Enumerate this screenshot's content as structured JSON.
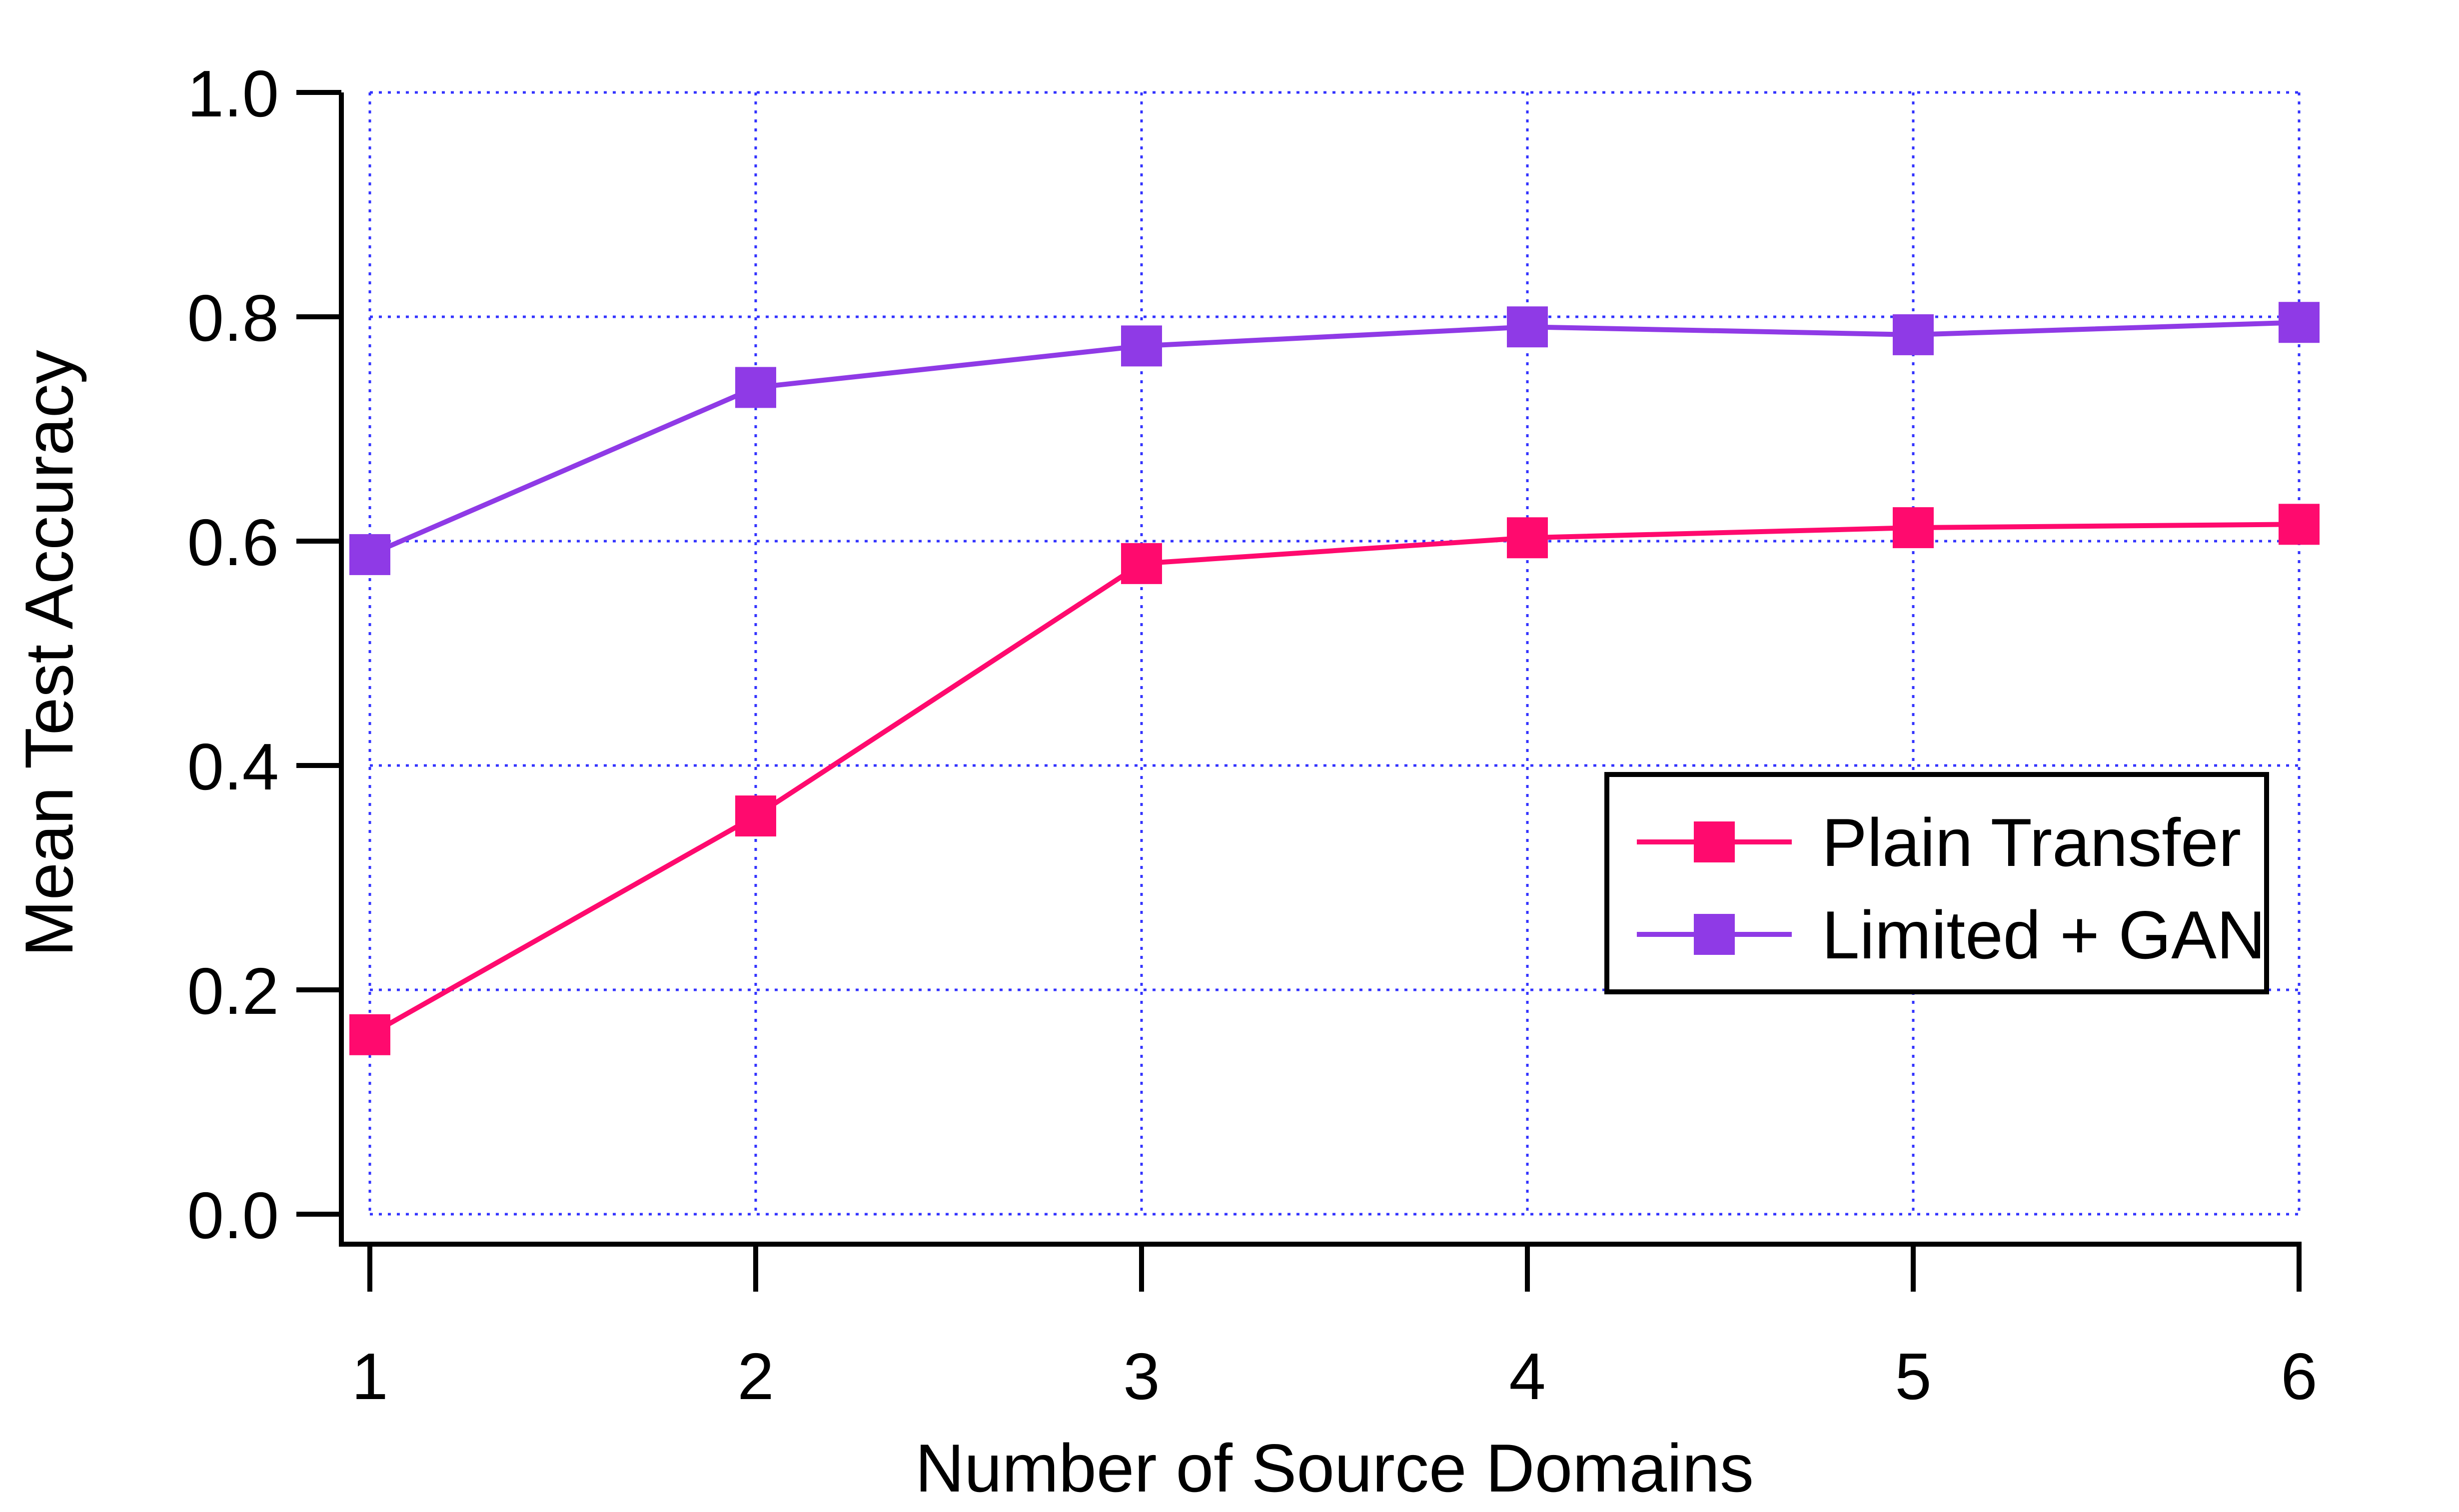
{
  "chart_data": {
    "type": "line",
    "title": "",
    "xlabel": "Number of Source Domains",
    "ylabel": "Mean Test Accuracy",
    "x": [
      1,
      2,
      3,
      4,
      5,
      6
    ],
    "xlim": [
      1,
      6
    ],
    "ylim": [
      0,
      1.0
    ],
    "x_ticks": [
      "1",
      "2",
      "3",
      "4",
      "5",
      "6"
    ],
    "y_ticks": [
      "0.0",
      "0.2",
      "0.4",
      "0.6",
      "0.8",
      "1.0"
    ],
    "grid": true,
    "grid_color": "#3333ff",
    "legend_position": "right",
    "series": [
      {
        "name": "Plain Transfer",
        "color": "#ff0a6e",
        "marker": "square",
        "values": [
          0.16,
          0.355,
          0.58,
          0.603,
          0.612,
          0.615
        ]
      },
      {
        "name": "Limited + GAN",
        "color": "#8f3ae6",
        "marker": "square",
        "values": [
          0.588,
          0.737,
          0.774,
          0.791,
          0.784,
          0.795
        ]
      }
    ]
  }
}
